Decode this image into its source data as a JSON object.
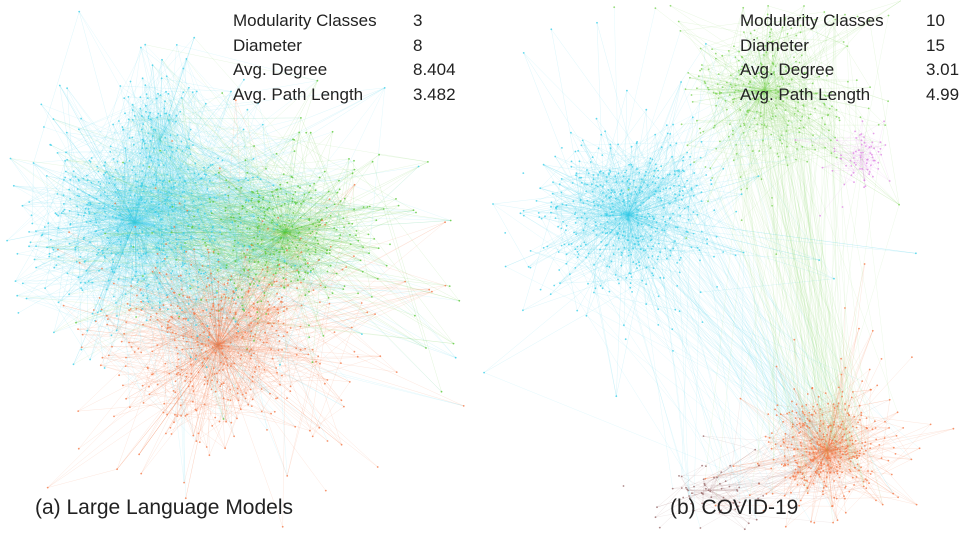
{
  "panels": [
    {
      "caption": "(a) Large Language Models",
      "stats": [
        {
          "label": "Modularity Classes",
          "value": "3"
        },
        {
          "label": "Diameter",
          "value": "8"
        },
        {
          "label": "Avg. Degree",
          "value": "8.404"
        },
        {
          "label": "Avg. Path Length",
          "value": "3.482"
        }
      ],
      "communities": [
        {
          "color": "#3ccfe9"
        },
        {
          "color": "#5cc93a"
        },
        {
          "color": "#f47a4a"
        }
      ]
    },
    {
      "caption": "(b) COVID-19",
      "stats": [
        {
          "label": "Modularity Classes",
          "value": "10"
        },
        {
          "label": "Diameter",
          "value": "15"
        },
        {
          "label": "Avg. Degree",
          "value": "3.01"
        },
        {
          "label": "Avg. Path Length",
          "value": "4.99"
        }
      ],
      "communities": [
        {
          "color": "#3ccfe9"
        },
        {
          "color": "#7ed35a"
        },
        {
          "color": "#f47a4a"
        },
        {
          "color": "#e088e6"
        },
        {
          "color": "#9a6b6b"
        }
      ]
    }
  ]
}
